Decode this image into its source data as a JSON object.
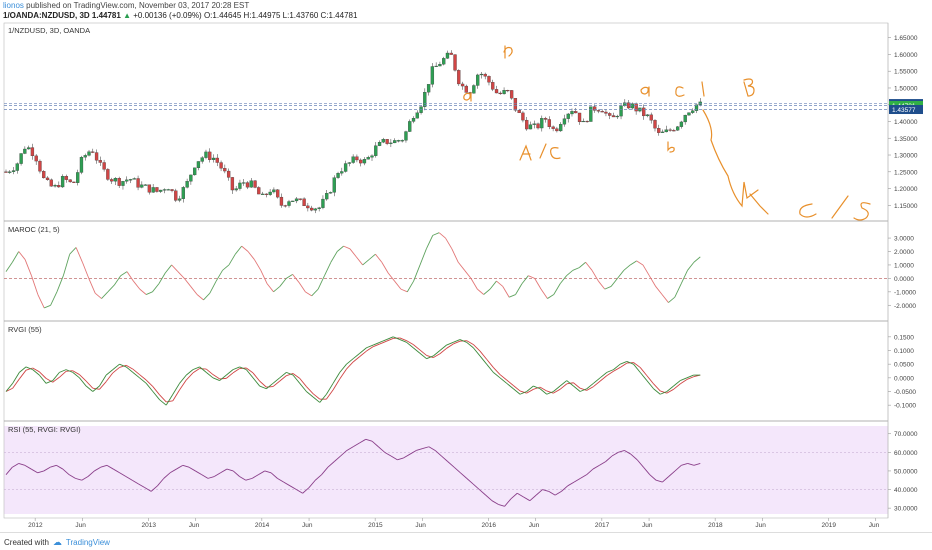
{
  "header": {
    "author": "lionos",
    "published_text": "published on TradingView.com, November 03, 2017 20:28 EST",
    "symbol_line": "1/OANDA:NZDUSD, 3D",
    "price": "1.44781",
    "change": "+0.00136 (+0.09%)",
    "ohlc": "O:1.44645 H:1.44975 L:1.43760 C:1.44781"
  },
  "footer": {
    "created_with": "Created with",
    "brand": "TradingView"
  },
  "colors": {
    "bull": "#2e9e53",
    "bear": "#d04545",
    "annotation": "#e8902c",
    "maroc_up": "#5fa35f",
    "maroc_down": "#e27777",
    "rsi_line": "#8a3f8a",
    "rsi_bg": "#f4e7fb",
    "dashed": "#6b85b8",
    "price_blue": "#1f4e8c",
    "price_green": "#31b046"
  },
  "chart_data": [
    {
      "type": "candlestick",
      "title": "1/NZDUSD, 3D, OANDA",
      "x_tick_labels": [
        "2012",
        "Jun",
        "2013",
        "Jun",
        "2014",
        "Jun",
        "2015",
        "Jun",
        "2016",
        "Jun",
        "2017",
        "Jun",
        "2018",
        "Jun",
        "2019",
        "Jun"
      ],
      "y_tick_labels": [
        "1.65000",
        "1.60000",
        "1.55000",
        "1.50000",
        "1.45000",
        "1.40000",
        "1.35000",
        "1.30000",
        "1.25000",
        "1.20000",
        "1.15000"
      ],
      "ylim": [
        1.13,
        1.67
      ],
      "path_points": [
        [
          "2011-10",
          1.25
        ],
        [
          "2011-11",
          1.27
        ],
        [
          "2011-12",
          1.33
        ],
        [
          "2012-01",
          1.3
        ],
        [
          "2012-02",
          1.22
        ],
        [
          "2012-03",
          1.2
        ],
        [
          "2012-04",
          1.23
        ],
        [
          "2012-05",
          1.21
        ],
        [
          "2012-06",
          1.29
        ],
        [
          "2012-07",
          1.32
        ],
        [
          "2012-08",
          1.26
        ],
        [
          "2012-09",
          1.23
        ],
        [
          "2012-10",
          1.22
        ],
        [
          "2012-11",
          1.23
        ],
        [
          "2012-12",
          1.21
        ],
        [
          "2013-01",
          1.2
        ],
        [
          "2013-02",
          1.19
        ],
        [
          "2013-03",
          1.21
        ],
        [
          "2013-04",
          1.17
        ],
        [
          "2013-05",
          1.21
        ],
        [
          "2013-06",
          1.28
        ],
        [
          "2013-07",
          1.3
        ],
        [
          "2013-08",
          1.29
        ],
        [
          "2013-09",
          1.25
        ],
        [
          "2013-10",
          1.19
        ],
        [
          "2013-11",
          1.22
        ],
        [
          "2013-12",
          1.21
        ],
        [
          "2014-01",
          1.17
        ],
        [
          "2014-02",
          1.2
        ],
        [
          "2014-03",
          1.15
        ],
        [
          "2014-04",
          1.17
        ],
        [
          "2014-05",
          1.16
        ],
        [
          "2014-06",
          1.15
        ],
        [
          "2014-07",
          1.14
        ],
        [
          "2014-08",
          1.18
        ],
        [
          "2014-09",
          1.25
        ],
        [
          "2014-10",
          1.27
        ],
        [
          "2014-11",
          1.29
        ],
        [
          "2014-12",
          1.28
        ],
        [
          "2015-01",
          1.32
        ],
        [
          "2015-02",
          1.34
        ],
        [
          "2015-03",
          1.34
        ],
        [
          "2015-04",
          1.35
        ],
        [
          "2015-05",
          1.42
        ],
        [
          "2015-06",
          1.46
        ],
        [
          "2015-07",
          1.55
        ],
        [
          "2015-08",
          1.58
        ],
        [
          "2015-09",
          1.6
        ],
        [
          "2015-10",
          1.51
        ],
        [
          "2015-11",
          1.49
        ],
        [
          "2015-12",
          1.55
        ],
        [
          "2016-01",
          1.52
        ],
        [
          "2016-02",
          1.48
        ],
        [
          "2016-03",
          1.49
        ],
        [
          "2016-04",
          1.43
        ],
        [
          "2016-05",
          1.39
        ],
        [
          "2016-06",
          1.38
        ],
        [
          "2016-07",
          1.41
        ],
        [
          "2016-08",
          1.37
        ],
        [
          "2016-09",
          1.42
        ],
        [
          "2016-10",
          1.44
        ],
        [
          "2016-11",
          1.39
        ],
        [
          "2016-12",
          1.44
        ],
        [
          "2017-01",
          1.44
        ],
        [
          "2017-02",
          1.4
        ],
        [
          "2017-03",
          1.44
        ],
        [
          "2017-04",
          1.45
        ],
        [
          "2017-05",
          1.43
        ],
        [
          "2017-06",
          1.41
        ],
        [
          "2017-07",
          1.36
        ],
        [
          "2017-08",
          1.37
        ],
        [
          "2017-09",
          1.39
        ],
        [
          "2017-10",
          1.43
        ],
        [
          "2017-11",
          1.45
        ]
      ],
      "horizontal_levels": [
        1.45351,
        1.44781,
        1.43577
      ],
      "price_labels": [
        "1.45351",
        "1.44781",
        "1.43577"
      ],
      "annotations": [
        "b",
        "a",
        "A/C",
        "a",
        "C/B",
        "b",
        "K",
        "C/S"
      ]
    },
    {
      "type": "line",
      "title": "MAROC (21, 5)",
      "y_tick_labels": [
        "3.0000",
        "2.0000",
        "1.0000",
        "0.0000",
        "-1.0000",
        "-2.0000"
      ],
      "ylim": [
        -2.5,
        3.6
      ],
      "zero_line": 0,
      "values": [
        0.5,
        1.2,
        2.0,
        1.4,
        0.2,
        -1.2,
        -2.2,
        -2.0,
        -1.0,
        0.2,
        1.8,
        2.3,
        1.2,
        0.0,
        -1.1,
        -1.5,
        -1.0,
        -0.5,
        0.2,
        0.5,
        -0.2,
        -0.8,
        -1.2,
        -1.0,
        -0.4,
        0.4,
        1.0,
        0.5,
        0.0,
        -0.6,
        -1.2,
        -1.6,
        -1.1,
        -0.2,
        0.6,
        1.0,
        1.8,
        2.4,
        2.0,
        1.4,
        0.6,
        -0.4,
        -1.0,
        -0.6,
        0.0,
        0.3,
        -0.3,
        -1.0,
        -1.3,
        -0.8,
        0.2,
        1.2,
        2.0,
        2.4,
        2.2,
        1.6,
        1.0,
        1.4,
        1.8,
        1.2,
        0.4,
        -0.2,
        -0.8,
        -1.0,
        -0.2,
        1.0,
        2.2,
        3.2,
        3.4,
        3.0,
        2.2,
        1.2,
        0.6,
        0.0,
        -0.8,
        -1.2,
        -0.8,
        -0.2,
        -0.6,
        -1.4,
        -1.2,
        -0.4,
        0.2,
        0.0,
        -0.8,
        -1.5,
        -1.2,
        -0.4,
        0.2,
        0.6,
        0.8,
        1.2,
        0.6,
        -0.2,
        -0.8,
        -0.6,
        0.0,
        0.6,
        1.0,
        1.3,
        1.0,
        0.2,
        -0.6,
        -1.2,
        -1.8,
        -1.4,
        -0.4,
        0.6,
        1.2,
        1.6
      ]
    },
    {
      "type": "line",
      "title": "RVGI (55)",
      "y_tick_labels": [
        "0.1500",
        "0.1000",
        "0.0500",
        "0.0000",
        "-0.0500",
        "-0.1000"
      ],
      "ylim": [
        -0.125,
        0.175
      ],
      "series": [
        {
          "name": "",
          "values": [
            -0.05,
            -0.02,
            0.02,
            0.04,
            0.03,
            0.01,
            -0.02,
            -0.01,
            0.02,
            0.03,
            0.02,
            0.0,
            -0.03,
            -0.05,
            -0.03,
            0.01,
            0.03,
            0.05,
            0.04,
            0.02,
            0.0,
            -0.02,
            -0.05,
            -0.08,
            -0.1,
            -0.06,
            -0.02,
            0.01,
            0.03,
            0.04,
            0.02,
            0.0,
            -0.01,
            0.01,
            0.03,
            0.04,
            0.03,
            0.0,
            -0.03,
            -0.04,
            -0.02,
            0.0,
            0.02,
            0.01,
            -0.02,
            -0.05,
            -0.07,
            -0.09,
            -0.06,
            -0.02,
            0.02,
            0.05,
            0.07,
            0.09,
            0.11,
            0.12,
            0.13,
            0.14,
            0.15,
            0.14,
            0.13,
            0.11,
            0.09,
            0.07,
            0.08,
            0.1,
            0.12,
            0.13,
            0.14,
            0.13,
            0.11,
            0.08,
            0.05,
            0.02,
            0.0,
            -0.02,
            -0.04,
            -0.06,
            -0.05,
            -0.03,
            -0.04,
            -0.06,
            -0.05,
            -0.03,
            -0.01,
            -0.03,
            -0.05,
            -0.04,
            -0.02,
            0.0,
            0.02,
            0.03,
            0.05,
            0.06,
            0.05,
            0.02,
            -0.01,
            -0.04,
            -0.06,
            -0.05,
            -0.03,
            -0.01,
            0.0,
            0.01,
            0.01
          ]
        }
      ]
    },
    {
      "type": "line",
      "title": "RSI (55, RVGI: RVGI)",
      "y_tick_labels": [
        "70.0000",
        "60.0000",
        "50.0000",
        "40.0000",
        "30.0000"
      ],
      "ylim": [
        29,
        72
      ],
      "values": [
        48,
        52,
        54,
        53,
        51,
        49,
        50,
        52,
        53,
        51,
        48,
        46,
        45,
        47,
        50,
        52,
        53,
        51,
        49,
        47,
        45,
        43,
        41,
        39,
        42,
        46,
        49,
        51,
        53,
        52,
        50,
        48,
        46,
        47,
        49,
        51,
        50,
        47,
        45,
        46,
        48,
        50,
        49,
        46,
        44,
        42,
        40,
        38,
        41,
        45,
        48,
        52,
        55,
        58,
        61,
        63,
        65,
        67,
        66,
        63,
        60,
        58,
        56,
        57,
        59,
        61,
        62,
        63,
        61,
        58,
        55,
        52,
        49,
        46,
        43,
        40,
        37,
        34,
        32,
        31,
        35,
        38,
        36,
        34,
        37,
        40,
        39,
        37,
        39,
        42,
        44,
        46,
        48,
        51,
        53,
        55,
        58,
        60,
        61,
        59,
        56,
        52,
        48,
        45,
        44,
        47,
        50,
        53,
        54,
        53,
        54
      ]
    }
  ]
}
